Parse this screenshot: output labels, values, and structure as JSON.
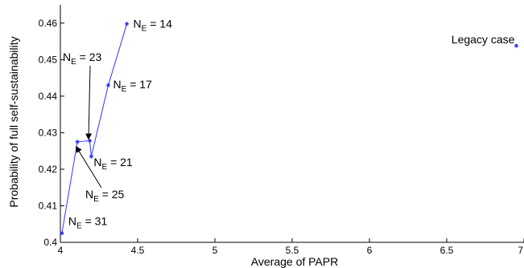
{
  "chart_data": {
    "type": "line",
    "xlabel": "Average of PAPR",
    "ylabel": "Probability of full self-sustainability",
    "xlim": [
      4,
      7
    ],
    "ylim": [
      0.4,
      0.465
    ],
    "xticks": [
      "4",
      "4.5",
      "5",
      "5.5",
      "6",
      "6.5",
      "7"
    ],
    "yticks": [
      "0.4",
      "0.41",
      "0.42",
      "0.43",
      "0.44",
      "0.45",
      "0.46"
    ],
    "grid": false,
    "colors": {
      "line": "#3333ff",
      "marker": "#3333ff",
      "axis": "#000000"
    },
    "series": [
      {
        "points": [
          {
            "x": 4.01,
            "y": 0.4025
          },
          {
            "x": 4.11,
            "y": 0.4275
          },
          {
            "x": 4.19,
            "y": 0.4278
          },
          {
            "x": 4.2,
            "y": 0.4235
          },
          {
            "x": 4.31,
            "y": 0.443
          },
          {
            "x": 4.43,
            "y": 0.4598
          }
        ]
      }
    ],
    "extra_points": [
      {
        "x": 6.95,
        "y": 0.4538
      }
    ],
    "annotations": [
      {
        "base": "N",
        "sub": "E",
        "rest": " = 14",
        "x": 4.43,
        "y": 0.4598,
        "arrow": false
      },
      {
        "base": "N",
        "sub": "E",
        "rest": " = 17",
        "x": 4.31,
        "y": 0.443,
        "arrow": false
      },
      {
        "base": "N",
        "sub": "E",
        "rest": " = 21",
        "x": 4.2,
        "y": 0.4235,
        "arrow": false
      },
      {
        "base": "N",
        "sub": "E",
        "rest": " = 23",
        "x": 4.19,
        "y": 0.4278,
        "arrow": true
      },
      {
        "base": "N",
        "sub": "E",
        "rest": " = 25",
        "x": 4.11,
        "y": 0.4275,
        "arrow": true
      },
      {
        "base": "N",
        "sub": "E",
        "rest": " = 31",
        "x": 4.01,
        "y": 0.4025,
        "arrow": false
      },
      {
        "text": "Legacy case",
        "x": 6.95,
        "y": 0.4538,
        "arrow": false
      }
    ]
  }
}
